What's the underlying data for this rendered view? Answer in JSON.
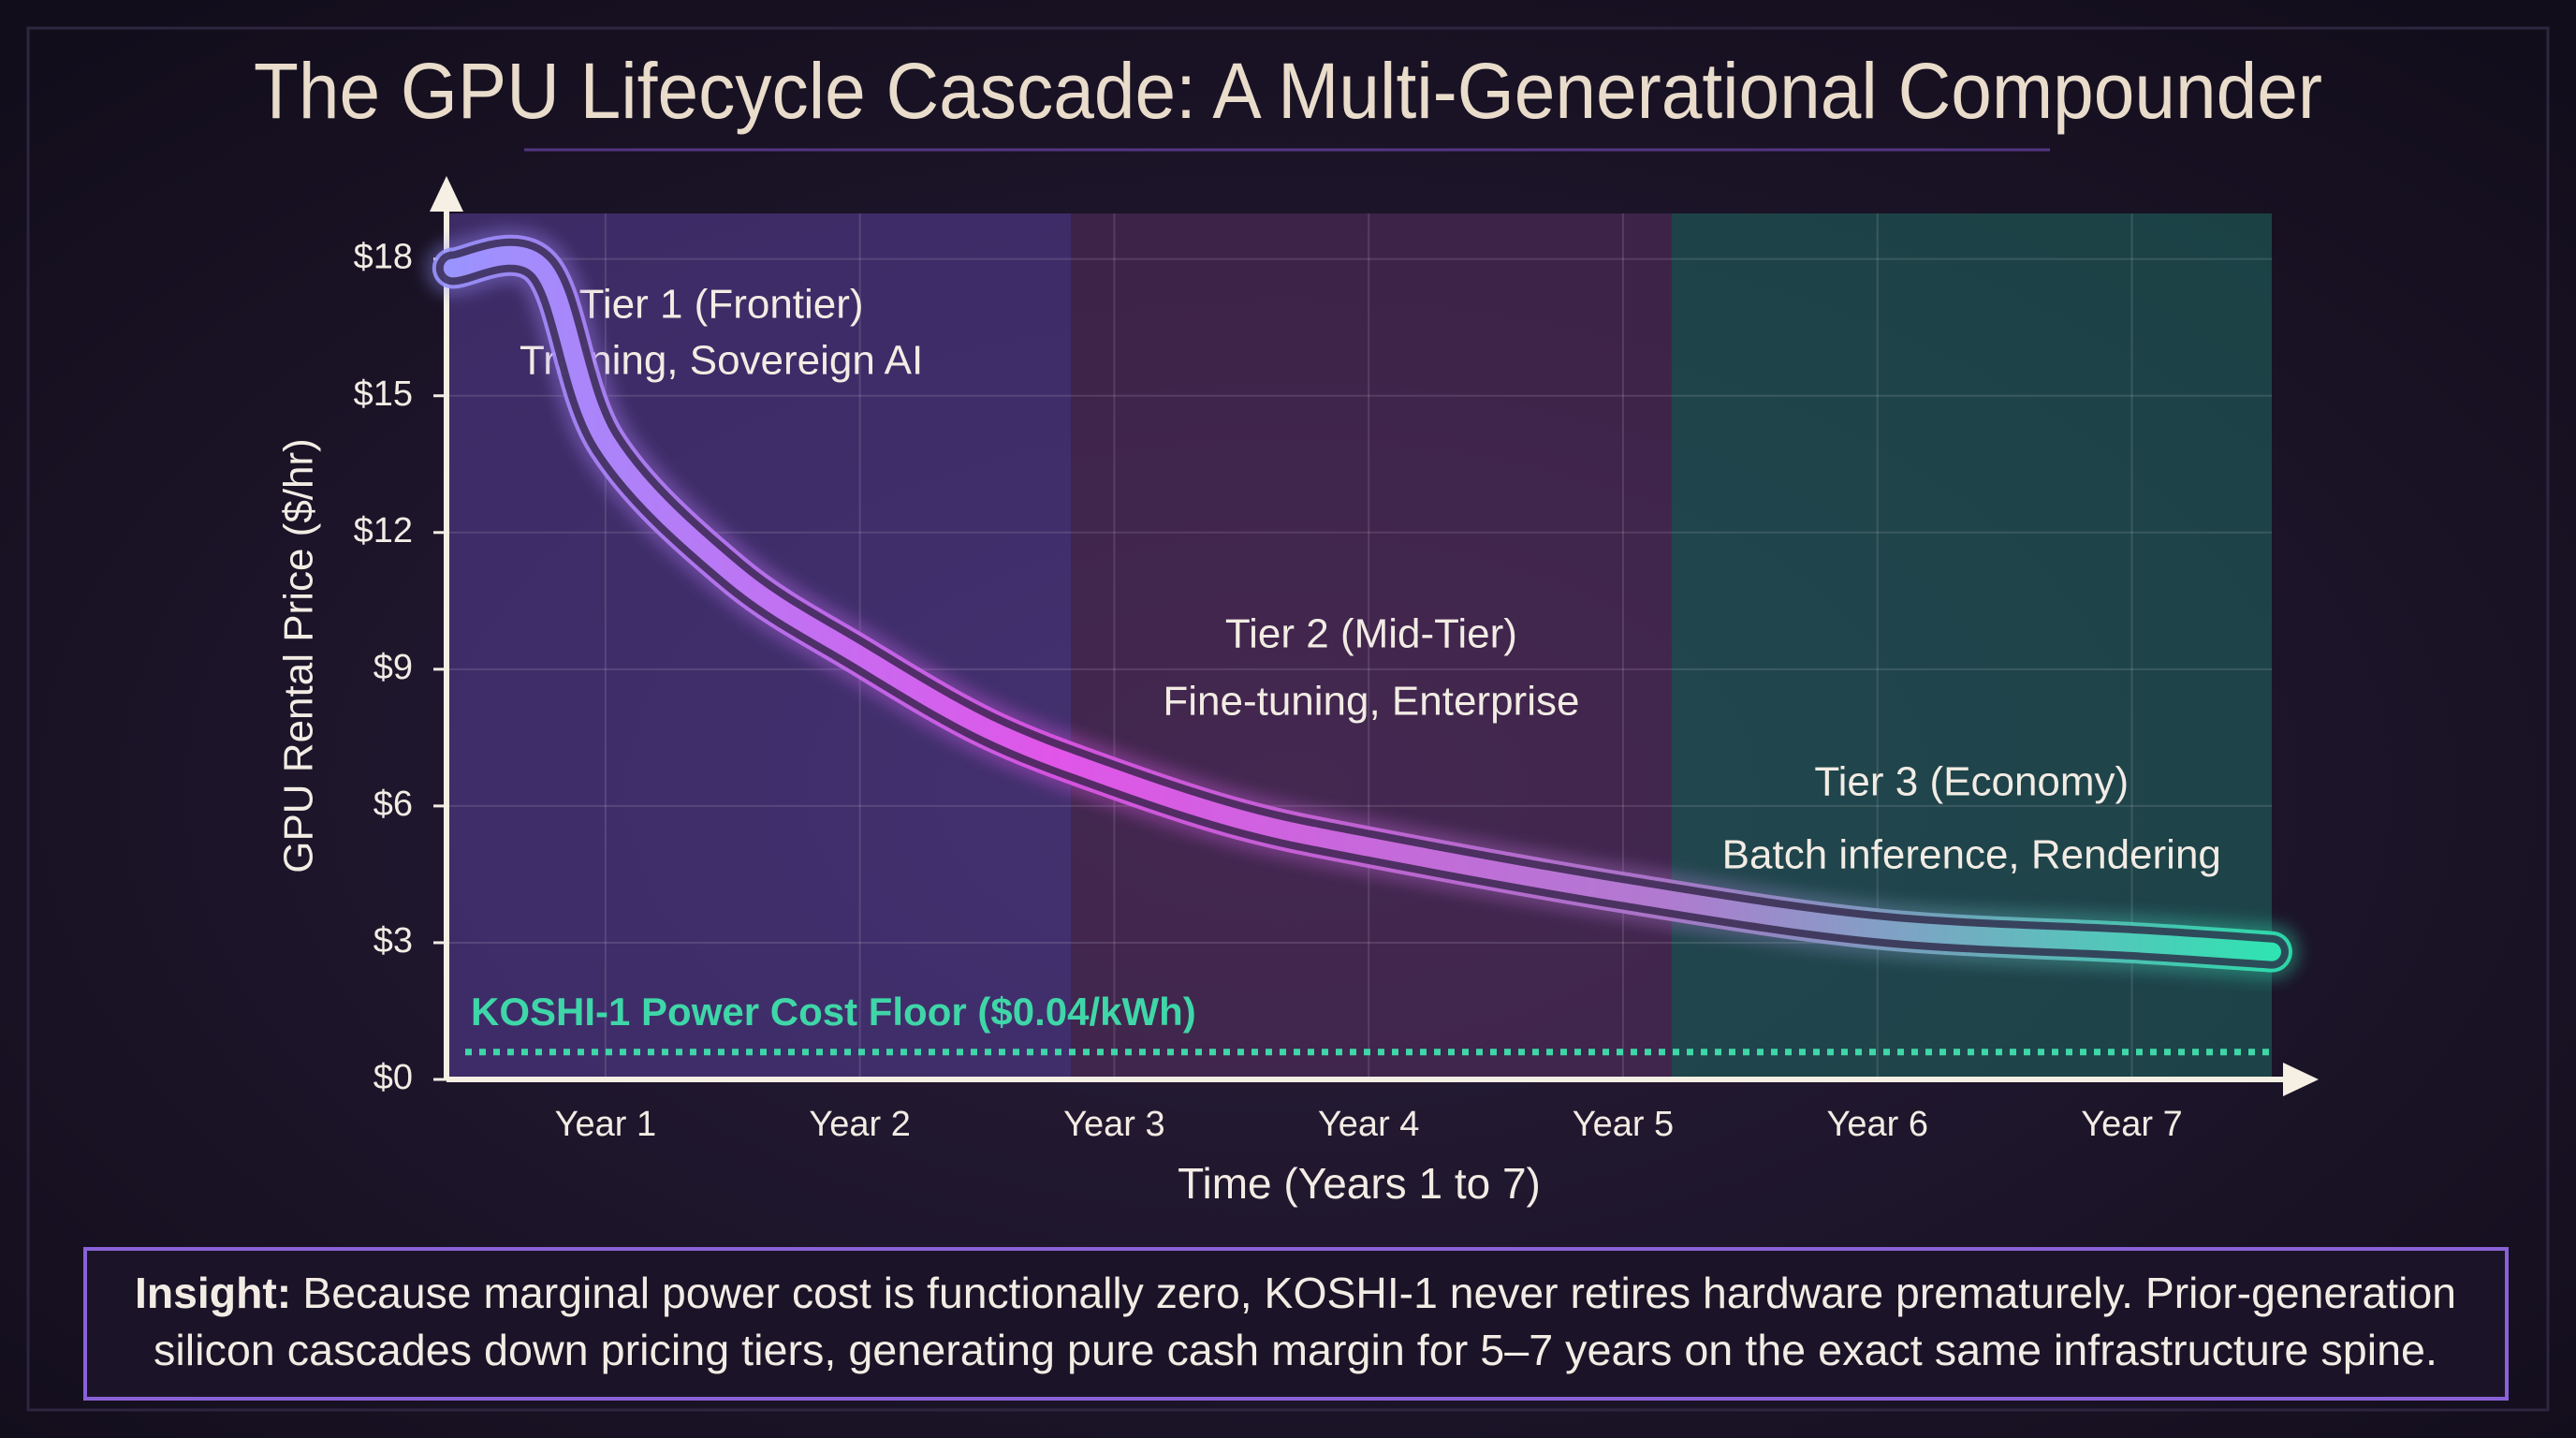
{
  "chart_data": {
    "type": "line",
    "title": "The GPU Lifecycle Cascade: A Multi-Generational Compounder",
    "x_label": "Time (Years 1 to 7)",
    "y_label": "GPU Rental Price ($/hr)",
    "xlim": [
      0.375,
      7.55
    ],
    "xticks": [
      {
        "value": 1,
        "label": "Year 1"
      },
      {
        "value": 2,
        "label": "Year 2"
      },
      {
        "value": 3,
        "label": "Year 3"
      },
      {
        "value": 4,
        "label": "Year 4"
      },
      {
        "value": 5,
        "label": "Year 5"
      },
      {
        "value": 6,
        "label": "Year 6"
      },
      {
        "value": 7,
        "label": "Year 7"
      }
    ],
    "ylim": [
      0,
      19
    ],
    "yticks": [
      {
        "value": 0,
        "label": "$0"
      },
      {
        "value": 3,
        "label": "$3"
      },
      {
        "value": 6,
        "label": "$6"
      },
      {
        "value": 9,
        "label": "$9"
      },
      {
        "value": 12,
        "label": "$12"
      },
      {
        "value": 15,
        "label": "$15"
      },
      {
        "value": 18,
        "label": "$18"
      }
    ],
    "grid": true,
    "series": [
      {
        "gradient": [
          "#9a94ff",
          "#e055e8",
          "#b07ad0",
          "#30e3b2"
        ],
        "x": [
          0.4,
          0.75,
          1,
          1.5,
          2,
          2.5,
          3,
          3.5,
          4,
          5,
          6,
          7,
          7.55
        ],
        "values": [
          17.8,
          17.8,
          14.0,
          11.1,
          9.3,
          7.7,
          6.6,
          5.7,
          5.1,
          4.1,
          3.3,
          3.0,
          2.8
        ]
      }
    ],
    "tiers": [
      {
        "title": "Tier 1 (Frontier)",
        "subtitle": "Training, Sovereign AI",
        "start": 0.375,
        "end": 2.83,
        "color": "#5a3f9a"
      },
      {
        "title": "Tier 2 (Mid-Tier)",
        "subtitle": "Fine-tuning, Enterprise",
        "start": 2.83,
        "end": 5.19,
        "color": "#5a3062"
      },
      {
        "title": "Tier 3 (Economy)",
        "subtitle": "Batch inference, Rendering",
        "start": 5.19,
        "end": 7.55,
        "color": "#1f6a62"
      }
    ],
    "floor": {
      "label": "KOSHI-1 Power Cost Floor ($0.04/kWh)",
      "value": 0.6,
      "color": "#3fd6a8"
    },
    "insight": {
      "label": "Insight:",
      "lines": [
        "Because marginal power cost is functionally zero, KOSHI-1 never retires hardware prematurely. Prior-generation",
        "silicon cascades down pricing tiers, generating pure cash margin for 5–7 years on the exact same infrastructure spine."
      ]
    }
  }
}
